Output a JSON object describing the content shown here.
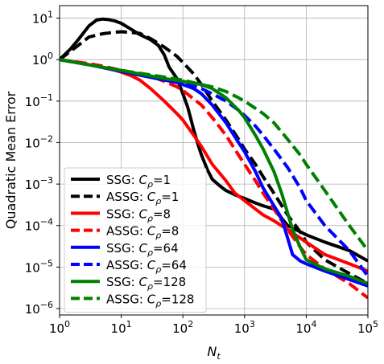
{
  "chart_data": {
    "type": "line",
    "xlabel": "N",
    "xlabel_sub": "t",
    "ylabel": "Quadratic Mean Error",
    "xscale": "log",
    "yscale": "log",
    "xlim": [
      1,
      100000
    ],
    "ylim": [
      7e-07,
      20
    ],
    "grid": true,
    "legend_position": "lower-left",
    "x_ticks": [
      {
        "value": 1,
        "base": "10",
        "exp": "0"
      },
      {
        "value": 10,
        "base": "10",
        "exp": "1"
      },
      {
        "value": 100,
        "base": "10",
        "exp": "2"
      },
      {
        "value": 1000,
        "base": "10",
        "exp": "3"
      },
      {
        "value": 10000,
        "base": "10",
        "exp": "4"
      },
      {
        "value": 100000,
        "base": "10",
        "exp": "5"
      }
    ],
    "y_ticks": [
      {
        "value": 1e-06,
        "base": "10",
        "exp": "−6"
      },
      {
        "value": 1e-05,
        "base": "10",
        "exp": "−5"
      },
      {
        "value": 0.0001,
        "base": "10",
        "exp": "−4"
      },
      {
        "value": 0.001,
        "base": "10",
        "exp": "−3"
      },
      {
        "value": 0.01,
        "base": "10",
        "exp": "−2"
      },
      {
        "value": 0.1,
        "base": "10",
        "exp": "−1"
      },
      {
        "value": 1,
        "base": "10",
        "exp": "0"
      },
      {
        "value": 10,
        "base": "10",
        "exp": "1"
      }
    ],
    "series": [
      {
        "name": "SSG: Cρ=1",
        "method": "SSG",
        "param": "1",
        "color": "#000000",
        "dash": "solid",
        "points": [
          [
            1,
            1.0
          ],
          [
            1.5,
            1.8
          ],
          [
            2,
            3.0
          ],
          [
            3,
            6.5
          ],
          [
            4,
            9.0
          ],
          [
            5,
            9.5
          ],
          [
            6,
            9.3
          ],
          [
            8,
            8.5
          ],
          [
            10,
            7.5
          ],
          [
            15,
            5.2
          ],
          [
            20,
            4.0
          ],
          [
            30,
            3.0
          ],
          [
            40,
            2.2
          ],
          [
            50,
            1.3
          ],
          [
            60,
            0.65
          ],
          [
            80,
            0.35
          ],
          [
            100,
            0.15
          ],
          [
            120,
            0.07
          ],
          [
            150,
            0.02
          ],
          [
            180,
            0.008
          ],
          [
            200,
            0.005
          ],
          [
            250,
            0.0022
          ],
          [
            300,
            0.0013
          ],
          [
            400,
            0.0009
          ],
          [
            500,
            0.0007
          ],
          [
            700,
            0.00055
          ],
          [
            1000,
            0.00045
          ],
          [
            1500,
            0.00035
          ],
          [
            2000,
            0.0003
          ],
          [
            3000,
            0.00025
          ],
          [
            5000,
            0.0001
          ],
          [
            10000,
            6e-05
          ],
          [
            20000,
            4e-05
          ],
          [
            50000,
            2.5e-05
          ],
          [
            100000,
            1.4e-05
          ]
        ]
      },
      {
        "name": "ASSG: Cρ=1",
        "method": "ASSG",
        "param": "1",
        "color": "#000000",
        "dash": "dashed",
        "points": [
          [
            1,
            1.0
          ],
          [
            2,
            2.2
          ],
          [
            3,
            3.5
          ],
          [
            5,
            4.2
          ],
          [
            8,
            4.6
          ],
          [
            10,
            4.7
          ],
          [
            15,
            4.5
          ],
          [
            20,
            4.3
          ],
          [
            30,
            3.2
          ],
          [
            50,
            2.0
          ],
          [
            80,
            1.2
          ],
          [
            100,
            0.85
          ],
          [
            150,
            0.45
          ],
          [
            200,
            0.25
          ],
          [
            300,
            0.1
          ],
          [
            500,
            0.035
          ],
          [
            800,
            0.012
          ],
          [
            1000,
            0.007
          ],
          [
            1500,
            0.003
          ],
          [
            2000,
            0.0015
          ],
          [
            3000,
            0.0006
          ],
          [
            5000,
            0.00018
          ],
          [
            8000,
            7e-05
          ],
          [
            10000,
            4e-05
          ],
          [
            20000,
            1.5e-05
          ],
          [
            50000,
            7e-06
          ],
          [
            100000,
            4e-06
          ]
        ]
      },
      {
        "name": "SSG: Cρ=8",
        "method": "SSG",
        "param": "8",
        "color": "#ff0000",
        "dash": "solid",
        "points": [
          [
            1,
            1.0
          ],
          [
            2,
            0.85
          ],
          [
            3,
            0.75
          ],
          [
            5,
            0.65
          ],
          [
            8,
            0.55
          ],
          [
            10,
            0.5
          ],
          [
            15,
            0.4
          ],
          [
            20,
            0.32
          ],
          [
            30,
            0.2
          ],
          [
            50,
            0.1
          ],
          [
            80,
            0.05
          ],
          [
            100,
            0.035
          ],
          [
            150,
            0.015
          ],
          [
            200,
            0.008
          ],
          [
            300,
            0.003
          ],
          [
            500,
            0.0012
          ],
          [
            700,
            0.0006
          ],
          [
            1000,
            0.0004
          ],
          [
            1500,
            0.00025
          ],
          [
            2000,
            0.00018
          ],
          [
            3000,
            0.00013
          ],
          [
            5000,
            8e-05
          ],
          [
            8000,
            5e-05
          ],
          [
            10000,
            4e-05
          ],
          [
            20000,
            2e-05
          ],
          [
            50000,
            1.2e-05
          ],
          [
            100000,
            8e-06
          ]
        ]
      },
      {
        "name": "ASSG: Cρ=8",
        "method": "ASSG",
        "param": "8",
        "color": "#ff0000",
        "dash": "dashed",
        "points": [
          [
            1,
            1.0
          ],
          [
            3,
            0.8
          ],
          [
            5,
            0.7
          ],
          [
            10,
            0.55
          ],
          [
            20,
            0.45
          ],
          [
            30,
            0.4
          ],
          [
            50,
            0.3
          ],
          [
            80,
            0.22
          ],
          [
            100,
            0.18
          ],
          [
            200,
            0.08
          ],
          [
            300,
            0.04
          ],
          [
            500,
            0.015
          ],
          [
            800,
            0.005
          ],
          [
            1000,
            0.003
          ],
          [
            1500,
            0.0012
          ],
          [
            2000,
            0.0006
          ],
          [
            3000,
            0.00025
          ],
          [
            5000,
            8e-05
          ],
          [
            8000,
            3e-05
          ],
          [
            10000,
            2e-05
          ],
          [
            20000,
            9e-06
          ],
          [
            50000,
            4e-06
          ],
          [
            100000,
            1.8e-06
          ]
        ]
      },
      {
        "name": "SSG: Cρ=64",
        "method": "SSG",
        "param": "64",
        "color": "#0000ff",
        "dash": "solid",
        "points": [
          [
            1,
            1.0
          ],
          [
            3,
            0.75
          ],
          [
            10,
            0.52
          ],
          [
            20,
            0.42
          ],
          [
            50,
            0.32
          ],
          [
            80,
            0.28
          ],
          [
            100,
            0.25
          ],
          [
            150,
            0.2
          ],
          [
            200,
            0.15
          ],
          [
            300,
            0.08
          ],
          [
            500,
            0.03
          ],
          [
            800,
            0.01
          ],
          [
            1000,
            0.006
          ],
          [
            1500,
            0.002
          ],
          [
            2000,
            0.0008
          ],
          [
            3000,
            0.0003
          ],
          [
            4000,
            0.00015
          ],
          [
            5000,
            5e-05
          ],
          [
            6000,
            2e-05
          ],
          [
            8000,
            1.4e-05
          ],
          [
            10000,
            1.2e-05
          ],
          [
            20000,
            8e-06
          ],
          [
            50000,
            5e-06
          ],
          [
            100000,
            3.5e-06
          ]
        ]
      },
      {
        "name": "ASSG: Cρ=64",
        "method": "ASSG",
        "param": "64",
        "color": "#0000ff",
        "dash": "dashed",
        "points": [
          [
            1,
            1.0
          ],
          [
            10,
            0.55
          ],
          [
            50,
            0.35
          ],
          [
            100,
            0.28
          ],
          [
            200,
            0.2
          ],
          [
            300,
            0.15
          ],
          [
            500,
            0.1
          ],
          [
            800,
            0.06
          ],
          [
            1000,
            0.045
          ],
          [
            1500,
            0.025
          ],
          [
            2000,
            0.015
          ],
          [
            3000,
            0.007
          ],
          [
            5000,
            0.0025
          ],
          [
            8000,
            0.0008
          ],
          [
            10000,
            0.0004
          ],
          [
            20000,
            0.0001
          ],
          [
            50000,
            2.5e-05
          ],
          [
            100000,
            6e-06
          ]
        ]
      },
      {
        "name": "SSG: Cρ=128",
        "method": "SSG",
        "param": "128",
        "color": "#008000",
        "dash": "solid",
        "points": [
          [
            1,
            1.0
          ],
          [
            10,
            0.55
          ],
          [
            50,
            0.35
          ],
          [
            100,
            0.3
          ],
          [
            200,
            0.25
          ],
          [
            300,
            0.2
          ],
          [
            500,
            0.12
          ],
          [
            800,
            0.06
          ],
          [
            1000,
            0.04
          ],
          [
            1500,
            0.015
          ],
          [
            2000,
            0.007
          ],
          [
            3000,
            0.002
          ],
          [
            4000,
            0.0006
          ],
          [
            5000,
            0.0002
          ],
          [
            6000,
            8e-05
          ],
          [
            8000,
            3e-05
          ],
          [
            10000,
            1.5e-05
          ],
          [
            20000,
            9e-06
          ],
          [
            50000,
            6e-06
          ],
          [
            100000,
            4e-06
          ]
        ]
      },
      {
        "name": "ASSG: Cρ=128",
        "method": "ASSG",
        "param": "128",
        "color": "#008000",
        "dash": "dashed",
        "points": [
          [
            1,
            1.0
          ],
          [
            10,
            0.55
          ],
          [
            50,
            0.38
          ],
          [
            100,
            0.32
          ],
          [
            200,
            0.25
          ],
          [
            300,
            0.22
          ],
          [
            500,
            0.17
          ],
          [
            800,
            0.12
          ],
          [
            1000,
            0.1
          ],
          [
            2000,
            0.05
          ],
          [
            3000,
            0.03
          ],
          [
            5000,
            0.012
          ],
          [
            8000,
            0.005
          ],
          [
            10000,
            0.003
          ],
          [
            20000,
            0.0007
          ],
          [
            50000,
            0.0001
          ],
          [
            100000,
            2.5e-05
          ]
        ]
      }
    ],
    "legend": [
      {
        "prefix": "SSG: ",
        "symbol": "C",
        "sub": "ρ",
        "value": "=1",
        "color": "#000000",
        "dash": "solid"
      },
      {
        "prefix": "ASSG: ",
        "symbol": "C",
        "sub": "ρ",
        "value": "=1",
        "color": "#000000",
        "dash": "dashed"
      },
      {
        "prefix": "SSG: ",
        "symbol": "C",
        "sub": "ρ",
        "value": "=8",
        "color": "#ff0000",
        "dash": "solid"
      },
      {
        "prefix": "ASSG: ",
        "symbol": "C",
        "sub": "ρ",
        "value": "=8",
        "color": "#ff0000",
        "dash": "dashed"
      },
      {
        "prefix": "SSG: ",
        "symbol": "C",
        "sub": "ρ",
        "value": "=64",
        "color": "#0000ff",
        "dash": "solid"
      },
      {
        "prefix": "ASSG: ",
        "symbol": "C",
        "sub": "ρ",
        "value": "=64",
        "color": "#0000ff",
        "dash": "dashed"
      },
      {
        "prefix": "SSG: ",
        "symbol": "C",
        "sub": "ρ",
        "value": "=128",
        "color": "#008000",
        "dash": "solid"
      },
      {
        "prefix": "ASSG: ",
        "symbol": "C",
        "sub": "ρ",
        "value": "=128",
        "color": "#008000",
        "dash": "dashed"
      }
    ]
  }
}
